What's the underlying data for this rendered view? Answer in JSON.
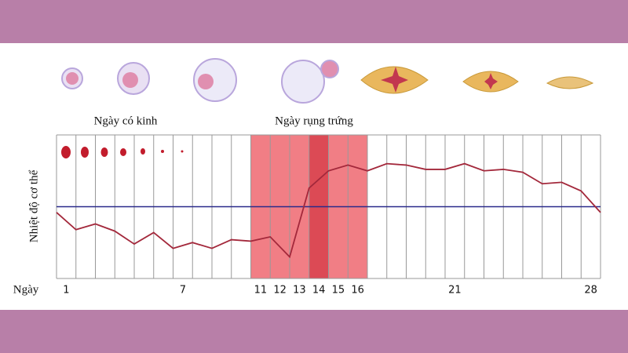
{
  "chart_data": {
    "type": "line",
    "left_label": "Ngày có kinh",
    "highlight_label": "Ngày rụng trứng",
    "ylabel": "Nhiệt độ cơ thể",
    "xlabel": "Ngày",
    "x": [
      0.5,
      1.5,
      2.5,
      3.5,
      4.5,
      5.5,
      6.5,
      7.5,
      8.5,
      9.5,
      10.5,
      11.5,
      12.5,
      13.5,
      14.5,
      15.5,
      16.5,
      17.5,
      18.5,
      19.5,
      20.5,
      21.5,
      22.5,
      23.5,
      24.5,
      25.5,
      26.5,
      27.5,
      28.5
    ],
    "series": [
      {
        "color": "#a3283b",
        "values": [
          46,
          34,
          38,
          33,
          24,
          32,
          21,
          25,
          21,
          27,
          26,
          29,
          15,
          63,
          75,
          79,
          75,
          80,
          79,
          76,
          76,
          80,
          75,
          76,
          74,
          66,
          67,
          61,
          46
        ]
      }
    ],
    "reference_line": 50,
    "reference_color": "#2a2a8a",
    "xlim": [
      0.5,
      28.5
    ],
    "ylim": [
      0,
      100
    ],
    "xticks": [
      1,
      7,
      11,
      12,
      13,
      14,
      15,
      16,
      21,
      28
    ],
    "fertile_window": [
      10.5,
      16.5
    ],
    "peak_day": [
      13.5,
      14.5
    ],
    "highlight_color": "#a3283b"
  }
}
